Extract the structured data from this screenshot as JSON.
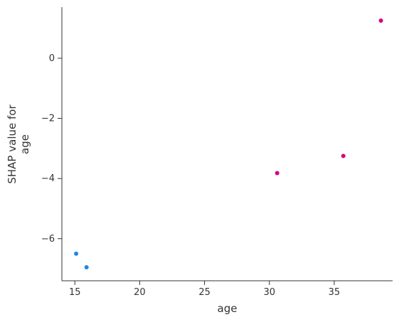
{
  "chart_data": {
    "type": "scatter",
    "title": "",
    "xlabel": "age",
    "ylabel_lines": [
      "SHAP value for",
      "age"
    ],
    "xlim": [
      14,
      39.5
    ],
    "ylim": [
      -7.4,
      1.7
    ],
    "xticks": [
      15,
      20,
      25,
      30,
      35
    ],
    "yticks": [
      0,
      -2,
      -4,
      -6
    ],
    "grid": false,
    "colors": {
      "positive": "#d6007a",
      "negative": "#1e88e5"
    },
    "points": [
      {
        "x": 15.1,
        "y": -6.5,
        "color": "#1e88e5"
      },
      {
        "x": 15.9,
        "y": -6.95,
        "color": "#1e88e5"
      },
      {
        "x": 30.6,
        "y": -3.82,
        "color": "#d6007a"
      },
      {
        "x": 35.7,
        "y": -3.25,
        "color": "#d6007a"
      },
      {
        "x": 38.6,
        "y": 1.25,
        "color": "#d6007a"
      }
    ]
  }
}
